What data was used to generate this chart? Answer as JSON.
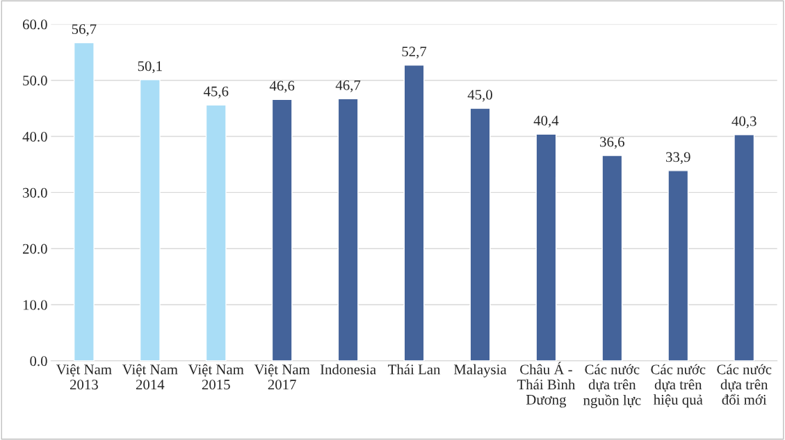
{
  "chart_data": {
    "type": "bar",
    "categories": [
      "Việt Nam\n2013",
      "Việt Nam\n2014",
      "Việt Nam\n2015",
      "Việt Nam\n2017",
      "Indonesia",
      "Thái Lan",
      "Malaysia",
      "Châu Á -\nThái Bình\nDương",
      "Các nước\ndựa trên\nnguồn lực",
      "Các nước\ndựa trên\nhiệu quả",
      "Các nước\ndựa trên\nđổi mới"
    ],
    "values": [
      56.7,
      50.1,
      45.6,
      46.6,
      46.7,
      52.7,
      45.0,
      40.4,
      36.6,
      33.9,
      40.3
    ],
    "colors": [
      "#a9ddf6",
      "#a9ddf6",
      "#a9ddf6",
      "#44639a",
      "#44639a",
      "#44639a",
      "#44639a",
      "#44639a",
      "#44639a",
      "#44639a",
      "#44639a"
    ],
    "value_labels": [
      "56,7",
      "50,1",
      "45,6",
      "46,6",
      "46,7",
      "52,7",
      "45,0",
      "40,4",
      "36,6",
      "33,9",
      "40,3"
    ],
    "ylim": [
      0,
      60
    ],
    "yticks": [
      {
        "value": 0,
        "label": "0.0"
      },
      {
        "value": 10,
        "label": "10.0"
      },
      {
        "value": 20,
        "label": "20.0"
      },
      {
        "value": 30,
        "label": "30.0"
      },
      {
        "value": 40,
        "label": "40.0"
      },
      {
        "value": 50,
        "label": "50.0"
      },
      {
        "value": 60,
        "label": "60.0"
      }
    ],
    "grid": "y"
  }
}
